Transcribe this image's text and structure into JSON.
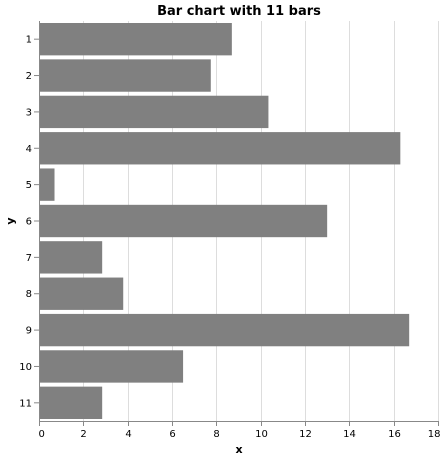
{
  "chart_data": {
    "type": "bar",
    "orientation": "horizontal",
    "title": "Bar chart with 11 bars",
    "xlabel": "x",
    "ylabel": "y",
    "categories": [
      "1",
      "2",
      "3",
      "4",
      "5",
      "6",
      "7",
      "8",
      "9",
      "10",
      "11"
    ],
    "values": [
      8.7,
      7.75,
      10.35,
      16.3,
      0.7,
      13.0,
      2.85,
      3.8,
      16.7,
      6.5,
      2.85
    ],
    "xlim": [
      0,
      18
    ],
    "xticks": [
      0,
      2,
      4,
      6,
      8,
      10,
      12,
      14,
      16,
      18
    ],
    "grid": true,
    "colors": {
      "bar": "#808080",
      "grid": "#dddddd",
      "axis": "#888888"
    }
  }
}
